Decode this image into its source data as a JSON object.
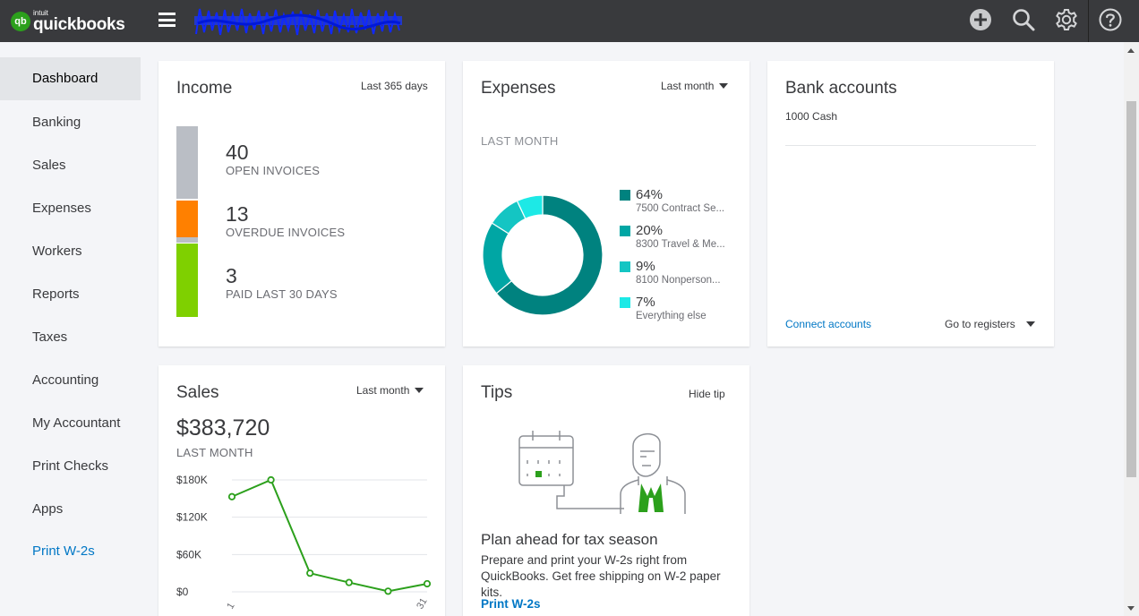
{
  "topbar": {
    "logo_brand": "intuit",
    "logo_name": "quickbooks",
    "logo_mark": "qb",
    "icons": [
      "plus-circle-icon",
      "search-icon",
      "gear-icon",
      "help-icon"
    ]
  },
  "sidebar": {
    "items": [
      {
        "label": "Dashboard",
        "active": true
      },
      {
        "label": "Banking"
      },
      {
        "label": "Sales"
      },
      {
        "label": "Expenses"
      },
      {
        "label": "Workers"
      },
      {
        "label": "Reports"
      },
      {
        "label": "Taxes"
      },
      {
        "label": "Accounting"
      },
      {
        "label": "My Accountant"
      },
      {
        "label": "Print Checks"
      },
      {
        "label": "Apps"
      },
      {
        "label": "Print W-2s"
      }
    ]
  },
  "income": {
    "title": "Income",
    "period": "Last 365 days",
    "open_count": "40",
    "open_label": "OPEN INVOICES",
    "overdue_count": "13",
    "overdue_label": "OVERDUE INVOICES",
    "paid_count": "3",
    "paid_label": "PAID LAST 30 DAYS",
    "colors": {
      "open": "#babec5",
      "overdue": "#ff8000",
      "paid": "#7fd000"
    }
  },
  "expenses": {
    "title": "Expenses",
    "period": "Last month",
    "subtitle": "LAST MONTH",
    "legend": [
      {
        "pct": "64%",
        "name": "7500 Contract Se...",
        "color": "#00827f"
      },
      {
        "pct": "20%",
        "name": "8300 Travel & Me...",
        "color": "#00a6a4"
      },
      {
        "pct": "9%",
        "name": "8100 Nonperson...",
        "color": "#14c5c3"
      },
      {
        "pct": "7%",
        "name": "Everything else",
        "color": "#1de9e6"
      }
    ]
  },
  "bank": {
    "title": "Bank accounts",
    "account": "1000 Cash",
    "connect": "Connect accounts",
    "goto": "Go to registers"
  },
  "sales": {
    "title": "Sales",
    "period": "Last month",
    "amount": "$383,720",
    "subtitle": "LAST MONTH",
    "y_ticks": [
      "$180K",
      "$120K",
      "$60K",
      "$0"
    ],
    "x_ticks": [
      "1",
      "31"
    ],
    "color": "#2ca01c"
  },
  "tips": {
    "title": "Tips",
    "hide": "Hide tip",
    "headline": "Plan ahead for tax season",
    "body": "Prepare and print your W-2s right from QuickBooks. Get free shipping on W-2 paper kits.",
    "link": "Print W-2s"
  },
  "chart_data": [
    {
      "type": "pie",
      "title": "",
      "categories": [
        "7500 Contract Se...",
        "8300 Travel & Me...",
        "8100 Nonperson...",
        "Everything else"
      ],
      "values": [
        64,
        20,
        9,
        7
      ]
    },
    {
      "type": "line",
      "title": "",
      "ylim": [
        0,
        180000
      ],
      "y_ticks": [
        0,
        60000,
        120000,
        180000
      ],
      "x": [
        1,
        7,
        13,
        19,
        25,
        31
      ],
      "series": [
        {
          "values": [
            153000,
            180000,
            30000,
            15000,
            1000,
            13000
          ]
        }
      ]
    }
  ]
}
